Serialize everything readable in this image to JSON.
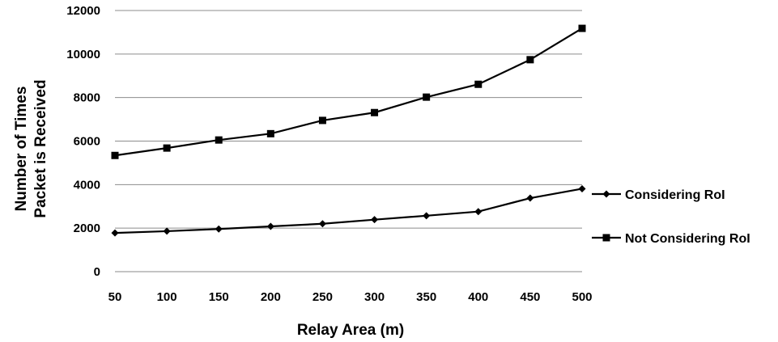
{
  "chart_data": {
    "type": "line",
    "title": "",
    "xlabel": "Relay Area (m)",
    "ylabel": [
      "Number of Times",
      "Packet is Received"
    ],
    "x": [
      50,
      100,
      150,
      200,
      250,
      300,
      350,
      400,
      450,
      500
    ],
    "x_ticks": [
      "50",
      "100",
      "150",
      "200",
      "250",
      "300",
      "350",
      "400",
      "450",
      "500"
    ],
    "y_ticks": [
      "0",
      "2000",
      "4000",
      "6000",
      "8000",
      "10000",
      "12000"
    ],
    "ylim": [
      0,
      12000
    ],
    "grid": "horizontal",
    "legend_position": "right",
    "series": [
      {
        "name": "Considering RoI",
        "marker": "diamond",
        "color": "#000000",
        "values": [
          1780,
          1860,
          1960,
          2080,
          2200,
          2390,
          2570,
          2760,
          3380,
          3810
        ]
      },
      {
        "name": "Not Considering RoI",
        "marker": "square",
        "color": "#000000",
        "values": [
          5340,
          5680,
          6050,
          6340,
          6950,
          7310,
          8020,
          8610,
          9740,
          11180
        ]
      }
    ]
  }
}
